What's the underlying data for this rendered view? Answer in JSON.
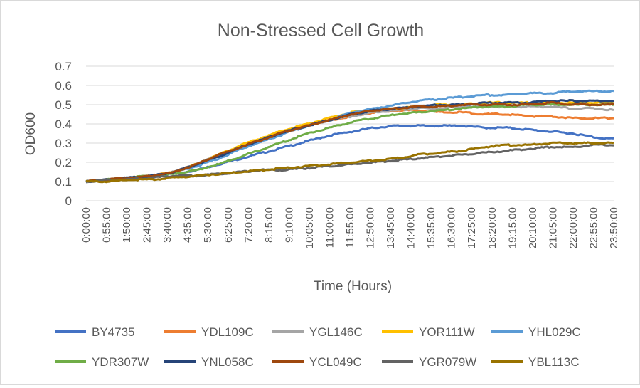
{
  "chart_data": {
    "type": "line",
    "title": "Non-Stressed Cell Growth",
    "xlabel": "Time (Hours)",
    "ylabel": "OD600",
    "ylim": [
      0,
      0.7
    ],
    "yticks": [
      "0",
      "0.1",
      "0.2",
      "0.3",
      "0.4",
      "0.5",
      "0.6",
      "0.7"
    ],
    "x_tick_labels": [
      "0:00:00",
      "0:55:00",
      "1:50:00",
      "2:45:00",
      "3:40:00",
      "4:35:00",
      "5:30:00",
      "6:25:00",
      "7:20:00",
      "8:15:00",
      "9:10:00",
      "10:05:00",
      "11:00:00",
      "11:55:00",
      "12:50:00",
      "13:45:00",
      "14:40:00",
      "15:35:00",
      "16:30:00",
      "17:25:00",
      "18:20:00",
      "19:15:00",
      "20:10:00",
      "21:05:00",
      "22:00:00",
      "22:55:00",
      "23:50:00"
    ],
    "x_hours": [
      0,
      1,
      2,
      3,
      4,
      5,
      6,
      7,
      8,
      9,
      10,
      11,
      12,
      13,
      14,
      15,
      16,
      17,
      18,
      19,
      20,
      21,
      22,
      23,
      24
    ],
    "grid": "horizontal",
    "legend_position": "bottom",
    "series": [
      {
        "name": "BY4735",
        "color": "#4472C4",
        "values": [
          0.1,
          0.11,
          0.12,
          0.13,
          0.14,
          0.16,
          0.19,
          0.22,
          0.25,
          0.28,
          0.31,
          0.34,
          0.36,
          0.38,
          0.39,
          0.39,
          0.39,
          0.39,
          0.38,
          0.38,
          0.37,
          0.36,
          0.35,
          0.33,
          0.32
        ]
      },
      {
        "name": "YDL109C",
        "color": "#ED7D31",
        "values": [
          0.1,
          0.11,
          0.12,
          0.13,
          0.15,
          0.19,
          0.24,
          0.28,
          0.32,
          0.36,
          0.39,
          0.42,
          0.44,
          0.46,
          0.47,
          0.47,
          0.46,
          0.46,
          0.45,
          0.45,
          0.44,
          0.44,
          0.43,
          0.43,
          0.43
        ]
      },
      {
        "name": "YGL146C",
        "color": "#A5A5A5",
        "values": [
          0.1,
          0.11,
          0.12,
          0.13,
          0.15,
          0.19,
          0.24,
          0.28,
          0.32,
          0.36,
          0.39,
          0.42,
          0.44,
          0.46,
          0.47,
          0.48,
          0.48,
          0.49,
          0.49,
          0.49,
          0.49,
          0.49,
          0.48,
          0.48,
          0.47
        ]
      },
      {
        "name": "YOR111W",
        "color": "#FFC000",
        "values": [
          0.1,
          0.11,
          0.12,
          0.13,
          0.15,
          0.19,
          0.24,
          0.29,
          0.33,
          0.37,
          0.4,
          0.43,
          0.46,
          0.47,
          0.48,
          0.49,
          0.5,
          0.5,
          0.51,
          0.51,
          0.51,
          0.51,
          0.51,
          0.51,
          0.51
        ]
      },
      {
        "name": "YHL029C",
        "color": "#5B9BD5",
        "values": [
          0.1,
          0.11,
          0.12,
          0.13,
          0.15,
          0.18,
          0.22,
          0.27,
          0.31,
          0.35,
          0.39,
          0.42,
          0.46,
          0.48,
          0.5,
          0.52,
          0.53,
          0.54,
          0.55,
          0.55,
          0.56,
          0.56,
          0.57,
          0.57,
          0.57
        ]
      },
      {
        "name": "YDR307W",
        "color": "#70AD47",
        "values": [
          0.1,
          0.11,
          0.12,
          0.13,
          0.14,
          0.16,
          0.19,
          0.23,
          0.27,
          0.31,
          0.35,
          0.38,
          0.41,
          0.43,
          0.45,
          0.46,
          0.47,
          0.48,
          0.49,
          0.49,
          0.5,
          0.5,
          0.5,
          0.5,
          0.5
        ]
      },
      {
        "name": "YNL058C",
        "color": "#264478",
        "values": [
          0.1,
          0.11,
          0.12,
          0.13,
          0.15,
          0.19,
          0.23,
          0.28,
          0.32,
          0.36,
          0.39,
          0.42,
          0.45,
          0.47,
          0.48,
          0.49,
          0.5,
          0.5,
          0.51,
          0.51,
          0.51,
          0.52,
          0.52,
          0.52,
          0.52
        ]
      },
      {
        "name": "YCL049C",
        "color": "#9E480E",
        "values": [
          0.1,
          0.11,
          0.12,
          0.13,
          0.15,
          0.19,
          0.24,
          0.28,
          0.32,
          0.36,
          0.39,
          0.42,
          0.45,
          0.47,
          0.48,
          0.49,
          0.49,
          0.5,
          0.5,
          0.5,
          0.5,
          0.51,
          0.5,
          0.5,
          0.5
        ]
      },
      {
        "name": "YGR079W",
        "color": "#636363",
        "values": [
          0.1,
          0.11,
          0.11,
          0.12,
          0.13,
          0.13,
          0.14,
          0.15,
          0.16,
          0.16,
          0.17,
          0.18,
          0.19,
          0.2,
          0.21,
          0.22,
          0.23,
          0.24,
          0.25,
          0.26,
          0.27,
          0.28,
          0.28,
          0.29,
          0.29
        ]
      },
      {
        "name": "YBL113C",
        "color": "#997300",
        "values": [
          0.1,
          0.1,
          0.11,
          0.11,
          0.12,
          0.13,
          0.14,
          0.15,
          0.16,
          0.17,
          0.18,
          0.19,
          0.2,
          0.21,
          0.22,
          0.24,
          0.25,
          0.26,
          0.28,
          0.29,
          0.29,
          0.3,
          0.3,
          0.3,
          0.3
        ]
      }
    ]
  }
}
